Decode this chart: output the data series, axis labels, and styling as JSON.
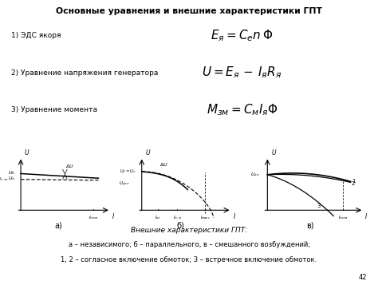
{
  "title": "Основные уравнения и внешние характеристики ГПТ",
  "eq1_label": "1) ЭДС якоря",
  "eq1_formula": "$E_{\\mathit{я}} =C_{e}n\\,\\Phi$",
  "eq2_label": "2) Уравнение напряжения генератора",
  "eq2_formula": "$U =E_{\\mathit{я}}\\,-\\,I_{\\mathit{я}}R_{\\mathit{я}}$",
  "eq3_label": "3) Уравнение момента",
  "eq3_formula": "$M_{\\mathit{зм}} =C_{\\mathit{м}}I_{\\mathit{я}}\\Phi$",
  "caption_main": "Внешние характеристики ГПТ:",
  "caption_line1": "а – независимого; б – параллельного, в – смешанного возбуждений;",
  "caption_line2": "1, 2 – согласное включение обмоток; 3 – встречное включение обмоток.",
  "sub_a": "а)",
  "sub_b": "б)",
  "sub_v": "в)",
  "page_num": "42",
  "bg_color": "#ffffff",
  "text_color": "#000000"
}
